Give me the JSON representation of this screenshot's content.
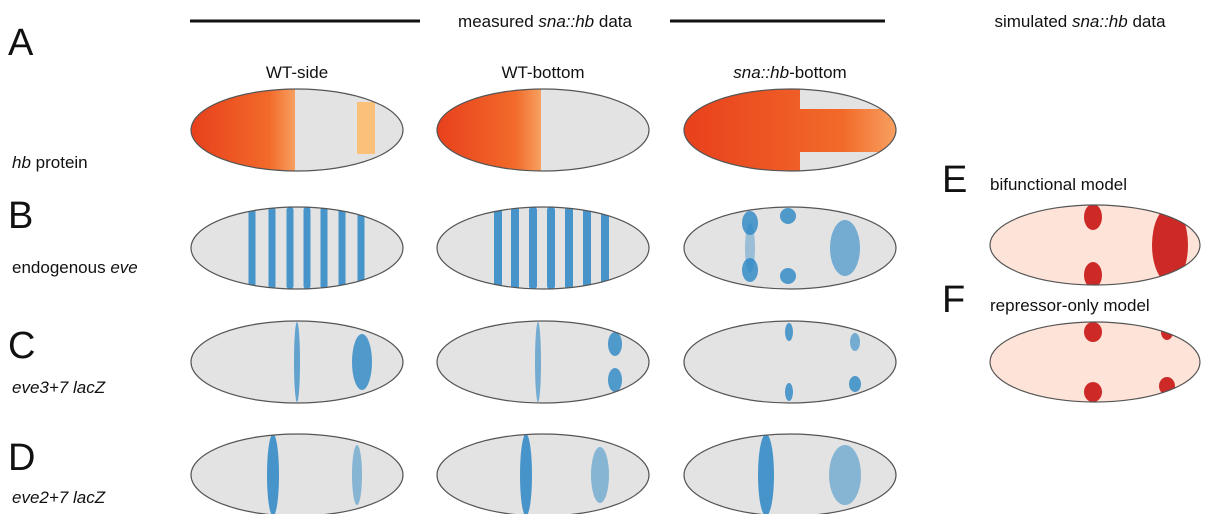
{
  "panels": {
    "A": "A",
    "B": "B",
    "C": "C",
    "D": "D",
    "E": "E",
    "F": "F"
  },
  "header": {
    "measured": [
      "measured ",
      "sna::hb",
      " data"
    ],
    "simulated": [
      "simulated ",
      "sna::hb",
      " data"
    ]
  },
  "columns": {
    "wt_side": "WT-side",
    "wt_bottom": "WT-bottom",
    "sna_bottom": [
      "sna::hb",
      "-bottom"
    ]
  },
  "rows": {
    "hb_protein": [
      "hb",
      " protein"
    ],
    "endogenous_eve": [
      "endogenous ",
      "eve"
    ],
    "eve37": "eve3+7 lacZ",
    "eve27": "eve2+7 lacZ"
  },
  "models": {
    "bifunctional": "bifunctional model",
    "repressor": "repressor-only model"
  }
}
